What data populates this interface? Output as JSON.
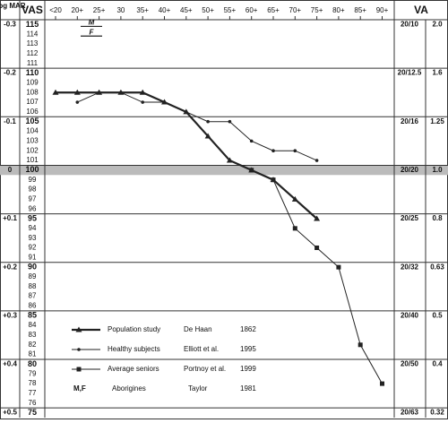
{
  "chart_data": {
    "type": "line",
    "header": {
      "logmar": "Log MAR",
      "vas": "VAS",
      "va": "VA"
    },
    "categories": [
      "<20",
      "20+",
      "25+",
      "30",
      "35+",
      "40+",
      "45+",
      "50+",
      "55+",
      "60+",
      "65+",
      "70+",
      "75+",
      "80+",
      "85+",
      "90+"
    ],
    "ylim": [
      74.5,
      115.5
    ],
    "yticks": [
      115,
      114,
      113,
      112,
      111,
      110,
      109,
      108,
      107,
      106,
      105,
      104,
      103,
      102,
      101,
      100,
      99,
      98,
      97,
      96,
      95,
      94,
      93,
      92,
      91,
      90,
      89,
      88,
      87,
      86,
      85,
      84,
      83,
      82,
      81,
      80,
      79,
      78,
      77,
      76,
      75
    ],
    "highlight": 100,
    "rows": [
      {
        "vas": 115,
        "logmar": "-0.3",
        "snellen": "20/10",
        "decimal": "2.0"
      },
      {
        "vas": 110,
        "logmar": "-0.2",
        "snellen": "20/12.5",
        "decimal": "1.6"
      },
      {
        "vas": 105,
        "logmar": "-0.1",
        "snellen": "20/16",
        "decimal": "1.25"
      },
      {
        "vas": 100,
        "logmar": "0",
        "snellen": "20/20",
        "decimal": "1.0"
      },
      {
        "vas": 95,
        "logmar": "+0.1",
        "snellen": "20/25",
        "decimal": "0.8"
      },
      {
        "vas": 90,
        "logmar": "+0.2",
        "snellen": "20/32",
        "decimal": "0.63"
      },
      {
        "vas": 85,
        "logmar": "+0.3",
        "snellen": "20/40",
        "decimal": "0.5"
      },
      {
        "vas": 80,
        "logmar": "+0.4",
        "snellen": "20/50",
        "decimal": "0.4"
      },
      {
        "vas": 75,
        "logmar": "+0.5",
        "snellen": "20/63",
        "decimal": "0.32"
      }
    ],
    "series": [
      {
        "name": "Population study",
        "author": "De Haan",
        "year": "1862",
        "color": "#222",
        "marker": "triangle",
        "width": 2.2,
        "values": [
          108,
          108,
          108,
          108,
          108,
          107,
          106,
          103.5,
          101,
          100,
          99,
          97,
          95,
          null,
          null,
          null
        ]
      },
      {
        "name": "Healthy subjects",
        "author": "Elliott et al.",
        "year": "1995",
        "color": "#222",
        "marker": "circle",
        "width": 1,
        "values": [
          null,
          107,
          108,
          108,
          107,
          107,
          106,
          105,
          105,
          103,
          102,
          102,
          101,
          null,
          null,
          null
        ]
      },
      {
        "name": "Average seniors",
        "author": "Portnoy et al.",
        "year": "1999",
        "color": "#222",
        "marker": "square",
        "width": 1,
        "values": [
          null,
          null,
          null,
          null,
          null,
          null,
          null,
          null,
          null,
          100,
          99,
          94,
          92,
          90,
          82,
          78
        ]
      }
    ],
    "aborigines": {
      "label": "M,F",
      "name": "Aborigines",
      "author": "Taylor",
      "year": "1981",
      "markers": [
        {
          "label": "M",
          "value": 115
        },
        {
          "label": "F",
          "value": 114
        }
      ]
    }
  }
}
